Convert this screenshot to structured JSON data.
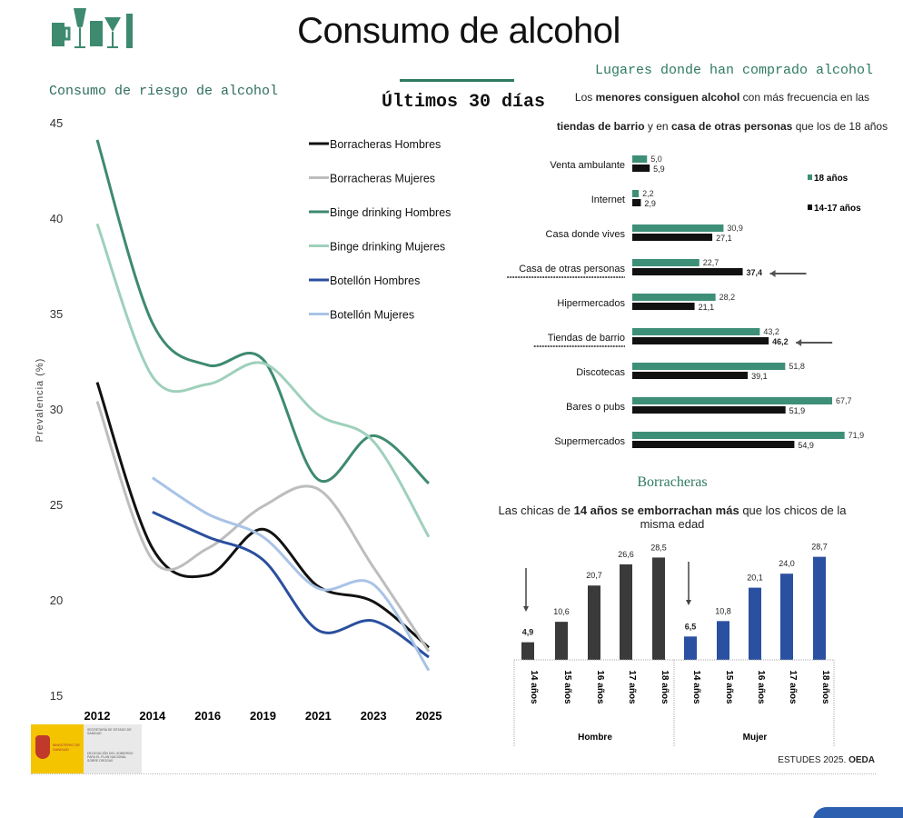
{
  "header": {
    "title": "Consumo de alcohol",
    "period": "Últimos 30 días"
  },
  "colors": {
    "binge_h": "#3e8a6f",
    "binge_m": "#9fd0bb",
    "borr_h": "#111111",
    "borr_m": "#bdbdbd",
    "bot_h": "#2a4f9e",
    "bot_m": "#a9c3e6",
    "bar18": "#3e8f77",
    "bar1417": "#111111",
    "hombre": "#3a3a3a",
    "mujer": "#2a50a2"
  },
  "chart_data": [
    {
      "type": "line",
      "title": "Consumo de riesgo de alcohol",
      "ylabel": "Prevalencia (%)",
      "xlabel": "",
      "x": [
        "2012",
        "2014",
        "2016",
        "2019",
        "2021",
        "2023",
        "2025"
      ],
      "ylim": [
        15,
        45
      ],
      "yticks": [
        "15",
        "20",
        "25",
        "30",
        "35",
        "40",
        "45"
      ],
      "legend": "top-right",
      "grid": false,
      "series": [
        {
          "name": "Borracheras Hombres",
          "color": "#111111",
          "values": [
            31.4,
            22.7,
            21.3,
            23.7,
            20.7,
            19.9,
            17.5
          ]
        },
        {
          "name": "Borracheras Mujeres",
          "color": "#bdbdbd",
          "values": [
            30.4,
            22.1,
            22.7,
            24.9,
            25.8,
            21.7,
            17.3
          ]
        },
        {
          "name": "Binge drinking Hombres",
          "color": "#3e8a6f",
          "values": [
            44.1,
            34.5,
            32.3,
            32.6,
            26.3,
            28.6,
            26.1
          ]
        },
        {
          "name": "Binge drinking Mujeres",
          "color": "#9fd0bb",
          "values": [
            39.7,
            31.7,
            31.3,
            32.4,
            29.7,
            28.3,
            23.3
          ]
        },
        {
          "name": "Botellón Hombres",
          "color": "#2a4f9e",
          "values": [
            null,
            24.6,
            23.3,
            22.1,
            18.4,
            18.9,
            17.0
          ]
        },
        {
          "name": "Botellón Mujeres",
          "color": "#a9c3e6",
          "values": [
            null,
            26.4,
            24.5,
            23.3,
            20.6,
            20.8,
            16.3
          ]
        }
      ]
    },
    {
      "type": "bar",
      "orientation": "horizontal",
      "title": "Lugares donde han comprado alcohol",
      "subtitle": [
        "Los ",
        "menores consiguen alcohol",
        " con más frecuencia en las"
      ],
      "subtitle2": [
        "tiendas de barrio",
        " y en ",
        "casa de otras personas",
        " que los de 18 años"
      ],
      "categories": [
        "Venta ambulante",
        "Internet",
        "Casa donde vives",
        "Casa de otras personas",
        "Hipermercados",
        "Tiendas de barrio",
        "Discotecas",
        "Bares o pubs",
        "Supermercados"
      ],
      "highlighted": [
        "Casa de otras personas",
        "Tiendas de barrio"
      ],
      "labels": {
        "a18": [
          "5,0",
          "2,2",
          "30,9",
          "22,7",
          "28,2",
          "43,2",
          "51,8",
          "67,7",
          "71,9"
        ],
        "a1417": [
          "5,9",
          "2,9",
          "27,1",
          "37,4",
          "21,1",
          "46,2",
          "39,1",
          "51,9",
          "54,9"
        ]
      },
      "series": [
        {
          "name": "18 años",
          "values": [
            5.0,
            2.2,
            30.9,
            22.7,
            28.2,
            43.2,
            51.8,
            67.7,
            71.9
          ]
        },
        {
          "name": "14-17 años",
          "values": [
            5.9,
            2.9,
            27.1,
            37.4,
            21.1,
            46.2,
            39.1,
            51.9,
            54.9
          ]
        }
      ],
      "legend": "right"
    },
    {
      "type": "bar",
      "title": "Borracheras",
      "subtitle": [
        "Las chicas de ",
        "14 años se emborrachan más",
        " que los chicos de la misma edad"
      ],
      "groups": [
        "Hombre",
        "Mujer"
      ],
      "categories": [
        "14 años",
        "15 años",
        "16 años",
        "17 años",
        "18 años"
      ],
      "series": [
        {
          "name": "Hombre",
          "values": [
            4.9,
            10.6,
            20.7,
            26.6,
            28.5
          ],
          "labels": [
            "4,9",
            "10,6",
            "20,7",
            "26,6",
            "28,5"
          ]
        },
        {
          "name": "Mujer",
          "values": [
            6.5,
            10.8,
            20.1,
            24.0,
            28.7
          ],
          "labels": [
            "6,5",
            "10,8",
            "20,1",
            "24,0",
            "28,7"
          ]
        }
      ]
    }
  ],
  "footer": {
    "source_prefix": "ESTUDES 2025. ",
    "source_bold": "OEDA",
    "logo_text": "MINISTERIO DE SANIDAD",
    "logo_sub1": "SECRETARÍA DE ESTADO DE SANIDAD",
    "logo_sub2": "DELEGACIÓN DEL GOBIERNO PARA EL PLAN NACIONAL SOBRE DROGAS"
  }
}
